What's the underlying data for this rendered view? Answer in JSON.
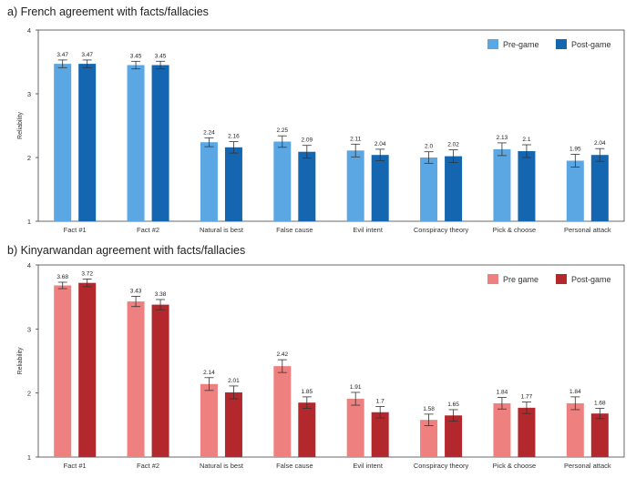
{
  "chart_data": [
    {
      "type": "bar",
      "title": "a) French agreement with facts/fallacies",
      "ylabel": "Reliability",
      "xlabel": "",
      "ylim": [
        1,
        4
      ],
      "yticks": [
        "1",
        "2",
        "3",
        "4"
      ],
      "grid": false,
      "legend": "top-right",
      "categories": [
        "Fact #1",
        "Fact #2",
        "Natural is best",
        "False cause",
        "Evil intent",
        "Conspiracy theory",
        "Pick & choose",
        "Personal attack"
      ],
      "series": [
        {
          "name": "Pre-game",
          "color": "#5ba7e3",
          "values": [
            3.47,
            3.45,
            2.24,
            2.25,
            2.11,
            2.0,
            2.13,
            1.95
          ],
          "labels": [
            "3.47",
            "3.45",
            "2.24",
            "2.25",
            "2.11",
            "2.0",
            "2.13",
            "1.95"
          ],
          "errors": [
            0.06,
            0.06,
            0.07,
            0.09,
            0.1,
            0.09,
            0.1,
            0.1
          ]
        },
        {
          "name": "Post-game",
          "color": "#1466b0",
          "values": [
            3.47,
            3.45,
            2.16,
            2.09,
            2.04,
            2.02,
            2.1,
            2.04
          ],
          "labels": [
            "3.47",
            "3.45",
            "2.16",
            "2.09",
            "2.04",
            "2.02",
            "2.1",
            "2.04"
          ],
          "errors": [
            0.06,
            0.06,
            0.09,
            0.1,
            0.09,
            0.1,
            0.1,
            0.1
          ]
        }
      ]
    },
    {
      "type": "bar",
      "title": "b) Kinyarwandan agreement with facts/fallacies",
      "ylabel": "Reliability",
      "xlabel": "",
      "ylim": [
        1,
        4
      ],
      "yticks": [
        "1",
        "2",
        "3",
        "4"
      ],
      "grid": false,
      "legend": "top-right",
      "categories": [
        "Fact #1",
        "Fact #2",
        "Natural is best",
        "False cause",
        "Evil intent",
        "Conspiracy theory",
        "Pick & choose",
        "Personal attack"
      ],
      "series": [
        {
          "name": "Pre  game",
          "color": "#ee8080",
          "values": [
            3.68,
            3.43,
            2.14,
            2.42,
            1.91,
            1.58,
            1.84,
            1.84
          ],
          "labels": [
            "3.68",
            "3.43",
            "2.14",
            "2.42",
            "1.91",
            "1.58",
            "1.84",
            "1.84"
          ],
          "errors": [
            0.05,
            0.08,
            0.1,
            0.1,
            0.1,
            0.09,
            0.09,
            0.1
          ]
        },
        {
          "name": "Post-game",
          "color": "#b3282d",
          "values": [
            3.72,
            3.38,
            2.01,
            1.85,
            1.7,
            1.65,
            1.77,
            1.68
          ],
          "labels": [
            "3.72",
            "3.38",
            "2.01",
            "1.85",
            "1.7",
            "1.65",
            "1.77",
            "1.68"
          ],
          "errors": [
            0.06,
            0.08,
            0.1,
            0.09,
            0.09,
            0.09,
            0.09,
            0.08
          ]
        }
      ]
    }
  ]
}
